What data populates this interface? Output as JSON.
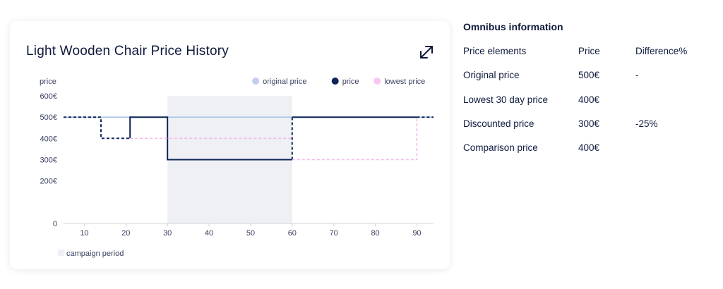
{
  "card": {
    "title": "Light Wooden Chair Price History",
    "expand_icon": "expand-diagonal-arrow-icon"
  },
  "chart_data": {
    "type": "line",
    "title": "Light Wooden Chair Price History",
    "ylabel": "price",
    "xlabel": "",
    "xlim": [
      5,
      94
    ],
    "ylim": [
      0,
      600
    ],
    "x_ticks": [
      10,
      20,
      30,
      40,
      50,
      60,
      70,
      80,
      90
    ],
    "y_ticks": [
      {
        "value": 0,
        "label": "0"
      },
      {
        "value": 200,
        "label": "200€"
      },
      {
        "value": 300,
        "label": "300€"
      },
      {
        "value": 400,
        "label": "400€"
      },
      {
        "value": 500,
        "label": "500€"
      },
      {
        "value": 600,
        "label": "600€"
      }
    ],
    "legend_position": "top-right",
    "series": [
      {
        "name": "original price",
        "color": "#c3cdee",
        "line_color": "#a9c6e6",
        "style": "solid",
        "segments": [
          {
            "style": "solid",
            "points": [
              [
                5,
                500
              ],
              [
                94,
                500
              ]
            ]
          }
        ]
      },
      {
        "name": "price",
        "color": "#0f2456",
        "style": "step",
        "segments": [
          {
            "style": "dashed",
            "points": [
              [
                5,
                500
              ],
              [
                14,
                500
              ],
              [
                14,
                400
              ],
              [
                21,
                400
              ]
            ]
          },
          {
            "style": "solid",
            "points": [
              [
                21,
                400
              ],
              [
                21,
                500
              ],
              [
                30,
                500
              ],
              [
                30,
                300
              ],
              [
                60,
                300
              ]
            ]
          },
          {
            "style": "dashed",
            "points": [
              [
                60,
                300
              ],
              [
                60,
                500
              ]
            ]
          },
          {
            "style": "solid",
            "points": [
              [
                60,
                500
              ],
              [
                90,
                500
              ]
            ]
          },
          {
            "style": "dashed",
            "points": [
              [
                90,
                500
              ],
              [
                94,
                500
              ]
            ]
          }
        ]
      },
      {
        "name": "lowest price",
        "color": "#f7c6f2",
        "line_color": "#f4b8ec",
        "style": "dashed",
        "segments": [
          {
            "style": "dashed",
            "points": [
              [
                21,
                400
              ],
              [
                60,
                400
              ]
            ]
          },
          {
            "style": "dashed",
            "points": [
              [
                60,
                300
              ],
              [
                90,
                300
              ],
              [
                90,
                500
              ]
            ]
          }
        ]
      }
    ],
    "campaign_period": {
      "label": "campaign period",
      "start": 30,
      "end": 60,
      "color": "#eef0f4"
    }
  },
  "omnibus": {
    "title": "Omnibus information",
    "headers": [
      "Price elements",
      "Price",
      "Difference%"
    ],
    "rows": [
      [
        "Original price",
        "500€",
        "-"
      ],
      [
        "Lowest 30 day price",
        "400€",
        ""
      ],
      [
        "Discounted price",
        "300€",
        "-25%"
      ],
      [
        "Comparison price",
        "400€",
        ""
      ]
    ]
  }
}
